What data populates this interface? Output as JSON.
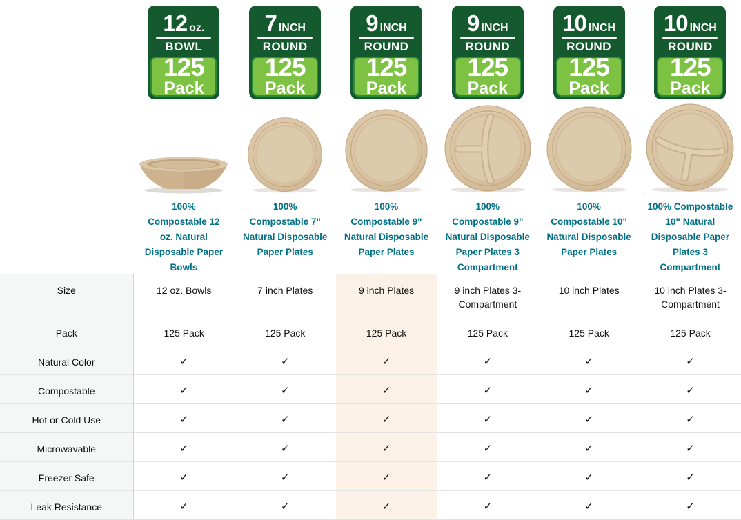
{
  "colors": {
    "badge_dark_green": "#15592f",
    "badge_light_green": "#7dc242",
    "badge_keyline_green": "#2f8c36",
    "title_link_teal": "#007185",
    "highlight_column_bg": "#fcf1e6",
    "label_column_bg": "#f5f6f6",
    "row_border": "#e3e3e3",
    "plate_tan": "#d9c4a4"
  },
  "products": [
    {
      "badge": {
        "size": "12",
        "unit": "oz.",
        "shape": "BOWL",
        "count": "125",
        "count_word": "Pack"
      },
      "image_icon": "bowl-side-photo",
      "title": "100%\nCompostable 12\noz. Natural\nDisposable Paper\nBowls",
      "highlighted": false
    },
    {
      "badge": {
        "size": "7",
        "unit": "INCH",
        "shape": "ROUND",
        "count": "125",
        "count_word": "Pack"
      },
      "image_icon": "round-plate-photo",
      "title": "100%\nCompostable 7\"\nNatural Disposable\nPaper Plates",
      "highlighted": false
    },
    {
      "badge": {
        "size": "9",
        "unit": "INCH",
        "shape": "ROUND",
        "count": "125",
        "count_word": "Pack"
      },
      "image_icon": "round-plate-photo",
      "title": "100%\nCompostable 9\"\nNatural Disposable\nPaper Plates",
      "highlighted": true
    },
    {
      "badge": {
        "size": "9",
        "unit": "INCH",
        "shape": "ROUND",
        "count": "125",
        "count_word": "Pack"
      },
      "image_icon": "compartment-plate-photo",
      "title": "100%\nCompostable 9\"\nNatural Disposable\nPaper Plates 3\nCompartment",
      "highlighted": false
    },
    {
      "badge": {
        "size": "10",
        "unit": "INCH",
        "shape": "ROUND",
        "count": "125",
        "count_word": "Pack"
      },
      "image_icon": "round-plate-photo",
      "title": "100%\nCompostable 10\"\nNatural Disposable\nPaper Plates",
      "highlighted": false
    },
    {
      "badge": {
        "size": "10",
        "unit": "INCH",
        "shape": "ROUND",
        "count": "125",
        "count_word": "Pack"
      },
      "image_icon": "compartment-plate-photo",
      "title": "100% Compostable\n10\" Natural\nDisposable Paper\nPlates 3\nCompartment",
      "highlighted": false
    }
  ],
  "table": {
    "highlighted_column": 2,
    "rows": [
      {
        "label": "Size",
        "type": "text",
        "values": [
          "12 oz. Bowls",
          "7 inch Plates",
          "9 inch Plates",
          "9 inch Plates 3-Compartment",
          "10 inch Plates",
          "10 inch Plates 3-Compartment"
        ]
      },
      {
        "label": "Pack",
        "type": "text",
        "values": [
          "125 Pack",
          "125 Pack",
          "125 Pack",
          "125 Pack",
          "125 Pack",
          "125 Pack"
        ]
      },
      {
        "label": "Natural Color",
        "type": "check",
        "values": [
          "✓",
          "✓",
          "✓",
          "✓",
          "✓",
          "✓"
        ]
      },
      {
        "label": "Compostable",
        "type": "check",
        "values": [
          "✓",
          "✓",
          "✓",
          "✓",
          "✓",
          "✓"
        ]
      },
      {
        "label": "Hot or Cold Use",
        "type": "check",
        "values": [
          "✓",
          "✓",
          "✓",
          "✓",
          "✓",
          "✓"
        ]
      },
      {
        "label": "Microwavable",
        "type": "check",
        "values": [
          "✓",
          "✓",
          "✓",
          "✓",
          "✓",
          "✓"
        ]
      },
      {
        "label": "Freezer Safe",
        "type": "check",
        "values": [
          "✓",
          "✓",
          "✓",
          "✓",
          "✓",
          "✓"
        ]
      },
      {
        "label": "Leak Resistance",
        "type": "check",
        "values": [
          "✓",
          "✓",
          "✓",
          "✓",
          "✓",
          "✓"
        ]
      }
    ]
  }
}
